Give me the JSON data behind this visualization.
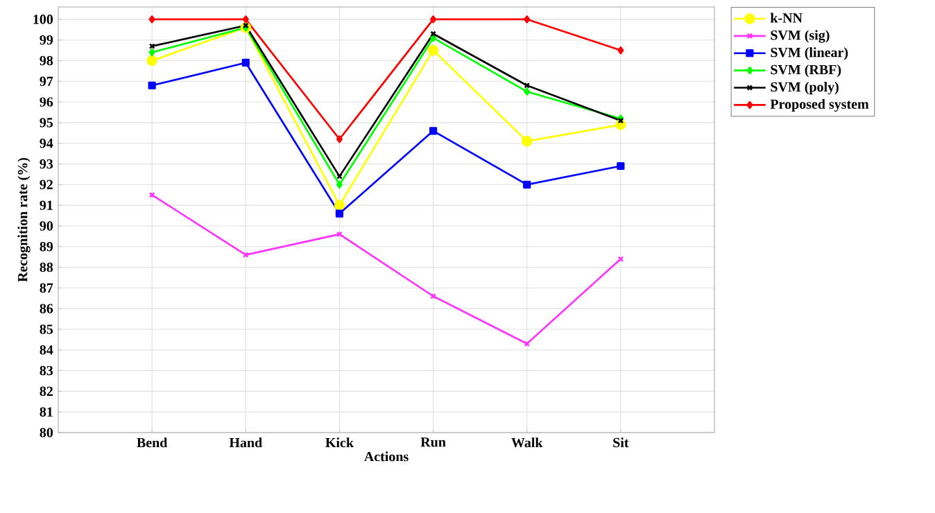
{
  "chart_data": {
    "type": "line",
    "xlabel": "Actions",
    "ylabel": "Recognition rate (%)",
    "categories": [
      "Bend",
      "Hand",
      "Kick",
      "Run",
      "Walk",
      "Sit"
    ],
    "ylim": [
      80,
      100.6
    ],
    "yticks": [
      80,
      81,
      82,
      83,
      84,
      85,
      86,
      87,
      88,
      89,
      90,
      91,
      92,
      93,
      94,
      95,
      96,
      97,
      98,
      99,
      100
    ],
    "grid": true,
    "legend": "top right",
    "line_style": "solid",
    "series": [
      {
        "name": "k-NN",
        "color": "#ffff00",
        "marker": "circle",
        "values": [
          98.0,
          99.6,
          91.0,
          98.5,
          94.1,
          94.9
        ]
      },
      {
        "name": "SVM (sig)",
        "color": "#ff33ff",
        "marker": "cross",
        "values": [
          91.5,
          88.6,
          89.6,
          86.6,
          84.3,
          88.4
        ]
      },
      {
        "name": "SVM (linear)",
        "color": "#0000ff",
        "marker": "square",
        "values": [
          96.8,
          97.9,
          90.6,
          94.6,
          92.0,
          92.9
        ]
      },
      {
        "name": "SVM (RBF)",
        "color": "#00ff00",
        "marker": "diamond",
        "values": [
          98.4,
          99.6,
          92.0,
          99.1,
          96.5,
          95.2
        ]
      },
      {
        "name": "SVM (poly)",
        "color": "#000000",
        "marker": "cross",
        "values": [
          98.7,
          99.7,
          92.4,
          99.3,
          96.8,
          95.1
        ]
      },
      {
        "name": "Proposed system",
        "color": "#ff0000",
        "marker": "diamond",
        "values": [
          100,
          100,
          94.2,
          100,
          100,
          98.5
        ]
      }
    ]
  }
}
